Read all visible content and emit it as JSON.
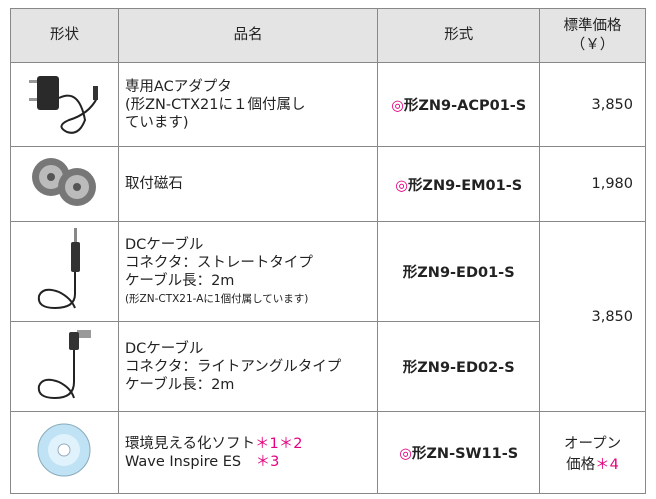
{
  "header": [
    "形状",
    "品名",
    "形式",
    [
      "標準価格",
      "（￥）"
    ]
  ],
  "rows": [
    {
      "name": [
        [
          {
            "text": "専用ACアダプタ"
          }
        ],
        [
          {
            "text": "(形ZN-CTX21に１個付属し"
          }
        ],
        [
          {
            "text": "ています)"
          }
        ]
      ],
      "mark": "◎",
      "model": "形ZN9-ACP01-S",
      "price": [
        [
          {
            "text": "3,850"
          }
        ]
      ]
    },
    {
      "name": [
        [
          {
            "text": "取付磁石"
          }
        ]
      ],
      "mark": "◎",
      "model": "形ZN9-EM01-S",
      "price": [
        [
          {
            "text": "1,980"
          }
        ]
      ]
    },
    {
      "name": [
        [
          {
            "text": "DCケーブル"
          }
        ],
        [
          {
            "text": "コネクタ：ストレートタイプ"
          }
        ],
        [
          {
            "text": "ケーブル長：2m"
          }
        ]
      ],
      "note": "(形ZN-CTX21-Aに1個付属しています)",
      "model": "形ZN9-ED01-S",
      "price": [
        [
          {
            "text": "3,850"
          }
        ]
      ],
      "price_rowspan": 2
    },
    {
      "name": [
        [
          {
            "text": "DCケーブル"
          }
        ],
        [
          {
            "text": "コネクタ：ライトアングルタイプ"
          }
        ],
        [
          {
            "text": "ケーブル長：2m"
          }
        ]
      ],
      "model": "形ZN9-ED02-S"
    },
    {
      "name": [
        [
          {
            "text": "環境見える化ソフト"
          },
          {
            "text": "＊1",
            "color": "#e4007f"
          },
          {
            "text": "＊2",
            "color": "#e4007f"
          }
        ],
        [
          {
            "text": "Wave Inspire ES　"
          },
          {
            "text": "＊3",
            "color": "#e4007f"
          }
        ]
      ],
      "mark": "◎",
      "model": "形ZN-SW11-S",
      "price": [
        [
          {
            "text": "オープン"
          }
        ],
        [
          {
            "text": "価格"
          },
          {
            "text": "＊4",
            "color": "#e4007f"
          }
        ]
      ]
    }
  ],
  "mark_color": "#e4007f"
}
